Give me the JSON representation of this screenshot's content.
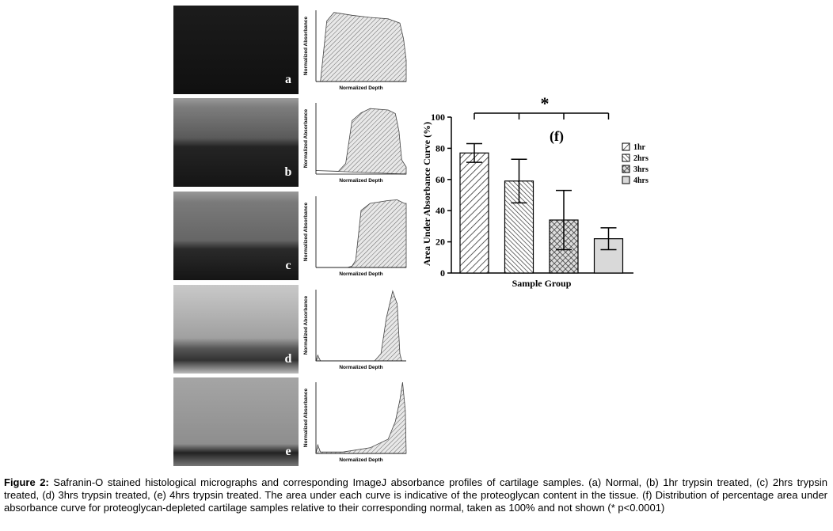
{
  "panels": [
    {
      "label": "a",
      "x_label": "Normalized Depth",
      "y_label": "Normalized Absorbance"
    },
    {
      "label": "b",
      "x_label": "Normalized Depth",
      "y_label": "Normalized Absorbance"
    },
    {
      "label": "c",
      "x_label": "Normalized Depth",
      "y_label": "Normalized Absorbance"
    },
    {
      "label": "d",
      "x_label": "Normalized Depth",
      "y_label": "Normalized Absorbance"
    },
    {
      "label": "e",
      "x_label": "Normalized Depth",
      "y_label": "Normalized Absorbance"
    }
  ],
  "chart_data": {
    "type": "bar",
    "title": "(f)",
    "x_label": "Sample Group",
    "y_label": "Area Under Absorbance Curve (%)",
    "annotation": "*",
    "series": [
      {
        "name": "1hr",
        "pattern": "diagonal",
        "values": [
          77
        ],
        "errors": [
          6
        ]
      },
      {
        "name": "2hrs",
        "pattern": "dense-diagonal",
        "values": [
          59
        ],
        "errors": [
          14
        ]
      },
      {
        "name": "3hrs",
        "pattern": "cross",
        "values": [
          34
        ],
        "errors": [
          19
        ]
      },
      {
        "name": "4hrs",
        "pattern": "solid",
        "values": [
          22
        ],
        "errors": [
          7
        ]
      }
    ],
    "ylim": [
      0,
      100
    ],
    "yticks": [
      0,
      20,
      40,
      60,
      80,
      100
    ]
  },
  "caption": {
    "label": "Figure 2:",
    "text": "Safranin-O stained histological micrographs and corresponding ImageJ absorbance profiles of cartilage samples. (a) Normal, (b) 1hr trypsin treated, (c) 2hrs trypsin treated, (d) 3hrs trypsin treated, (e) 4hrs trypsin treated. The area under each curve is indicative of the proteoglycan content in the tissue. (f) Distribution of percentage area under absorbance curve for proteoglycan-depleted cartilage samples relative to their corresponding normal, taken as 100% and not shown (* p<0.0001)"
  }
}
